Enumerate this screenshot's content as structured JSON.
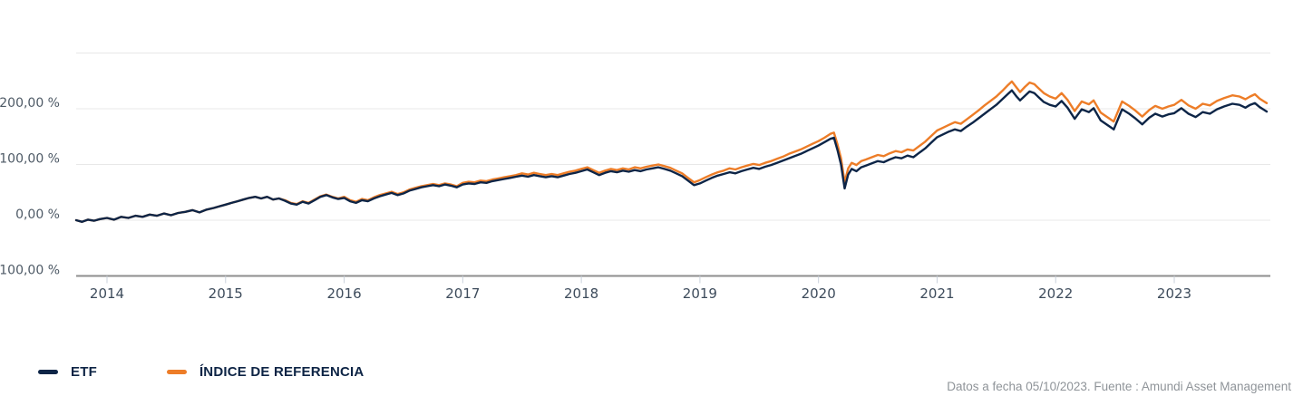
{
  "chart_data": {
    "type": "line",
    "title": "",
    "xlabel": "",
    "ylabel": "",
    "ylim": [
      -100,
      300
    ],
    "grid": true,
    "legend_position": "bottom-left",
    "yticks": [
      {
        "value": 300,
        "label": ""
      },
      {
        "value": 200,
        "label": "200,00 %"
      },
      {
        "value": 100,
        "label": "100,00 %"
      },
      {
        "value": 0,
        "label": "0,00 %"
      },
      {
        "value": -100,
        "label": "-100,00 %",
        "axis": true
      }
    ],
    "xticks": [
      {
        "year": 2014,
        "label": "2014"
      },
      {
        "year": 2015,
        "label": "2015"
      },
      {
        "year": 2016,
        "label": "2016"
      },
      {
        "year": 2017,
        "label": "2017"
      },
      {
        "year": 2018,
        "label": "2018"
      },
      {
        "year": 2019,
        "label": "2019"
      },
      {
        "year": 2020,
        "label": "2020"
      },
      {
        "year": 2021,
        "label": "2021"
      },
      {
        "year": 2022,
        "label": "2022"
      },
      {
        "year": 2023,
        "label": "2023"
      }
    ],
    "legend": [
      {
        "label": "ETF",
        "color": "#0d2547"
      },
      {
        "label": "ÍNDICE DE REFERENCIA",
        "color": "#ed7d28"
      }
    ],
    "x": [
      2013.74,
      2013.79,
      2013.84,
      2013.89,
      2013.94,
      2014.0,
      2014.06,
      2014.12,
      2014.18,
      2014.24,
      2014.3,
      2014.36,
      2014.42,
      2014.48,
      2014.54,
      2014.6,
      2014.66,
      2014.72,
      2014.78,
      2014.84,
      2014.9,
      2014.95,
      2015.0,
      2015.05,
      2015.1,
      2015.15,
      2015.2,
      2015.25,
      2015.3,
      2015.35,
      2015.4,
      2015.45,
      2015.5,
      2015.55,
      2015.6,
      2015.65,
      2015.7,
      2015.75,
      2015.8,
      2015.85,
      2015.9,
      2015.95,
      2016.0,
      2016.05,
      2016.1,
      2016.15,
      2016.2,
      2016.25,
      2016.3,
      2016.35,
      2016.4,
      2016.45,
      2016.5,
      2016.55,
      2016.6,
      2016.65,
      2016.7,
      2016.75,
      2016.8,
      2016.85,
      2016.9,
      2016.95,
      2017.0,
      2017.05,
      2017.1,
      2017.15,
      2017.2,
      2017.25,
      2017.3,
      2017.35,
      2017.4,
      2017.45,
      2017.5,
      2017.55,
      2017.6,
      2017.65,
      2017.7,
      2017.75,
      2017.8,
      2017.85,
      2017.9,
      2017.95,
      2018.0,
      2018.05,
      2018.1,
      2018.15,
      2018.2,
      2018.25,
      2018.3,
      2018.35,
      2018.4,
      2018.45,
      2018.5,
      2018.55,
      2018.6,
      2018.65,
      2018.7,
      2018.75,
      2018.8,
      2018.85,
      2018.9,
      2018.95,
      2019.0,
      2019.05,
      2019.1,
      2019.15,
      2019.2,
      2019.25,
      2019.3,
      2019.35,
      2019.4,
      2019.45,
      2019.5,
      2019.55,
      2019.6,
      2019.65,
      2019.7,
      2019.75,
      2019.8,
      2019.85,
      2019.9,
      2019.95,
      2020.0,
      2020.05,
      2020.1,
      2020.13,
      2020.16,
      2020.19,
      2020.22,
      2020.25,
      2020.28,
      2020.32,
      2020.36,
      2020.4,
      2020.45,
      2020.5,
      2020.55,
      2020.6,
      2020.65,
      2020.7,
      2020.75,
      2020.8,
      2020.85,
      2020.9,
      2020.95,
      2021.0,
      2021.05,
      2021.1,
      2021.15,
      2021.2,
      2021.25,
      2021.3,
      2021.35,
      2021.4,
      2021.45,
      2021.5,
      2021.55,
      2021.6,
      2021.63,
      2021.67,
      2021.7,
      2021.74,
      2021.78,
      2021.82,
      2021.86,
      2021.9,
      2021.95,
      2022.0,
      2022.05,
      2022.1,
      2022.16,
      2022.22,
      2022.28,
      2022.32,
      2022.38,
      2022.49,
      2022.56,
      2022.62,
      2022.67,
      2022.73,
      2022.79,
      2022.84,
      2022.9,
      2022.95,
      2023.0,
      2023.06,
      2023.12,
      2023.18,
      2023.24,
      2023.3,
      2023.36,
      2023.42,
      2023.49,
      2023.55,
      2023.6,
      2023.64,
      2023.68,
      2023.72,
      2023.75,
      2023.78
    ],
    "series": [
      {
        "name": "ÍNDICE DE REFERENCIA",
        "color": "#ed7d28",
        "values": [
          0,
          -3,
          1,
          -1,
          2,
          4,
          1,
          6,
          4,
          8,
          6,
          10,
          8,
          12,
          9,
          13,
          15,
          18,
          14,
          19,
          22,
          25,
          28,
          31,
          34,
          37,
          40,
          42,
          39,
          42,
          37,
          39,
          36,
          31,
          29,
          34,
          31,
          37,
          43,
          46,
          42,
          39,
          42,
          36,
          33,
          38,
          36,
          41,
          45,
          48,
          51,
          47,
          50,
          55,
          58,
          61,
          63,
          65,
          63,
          66,
          64,
          61,
          67,
          69,
          68,
          71,
          70,
          73,
          75,
          77,
          79,
          81,
          84,
          82,
          85,
          83,
          81,
          83,
          81,
          84,
          87,
          89,
          92,
          95,
          90,
          85,
          89,
          92,
          90,
          93,
          91,
          95,
          93,
          96,
          98,
          100,
          97,
          94,
          89,
          84,
          76,
          68,
          72,
          77,
          82,
          86,
          89,
          93,
          91,
          95,
          98,
          101,
          99,
          103,
          106,
          110,
          114,
          119,
          123,
          127,
          132,
          137,
          142,
          148,
          155,
          157,
          136,
          111,
          68,
          93,
          103,
          99,
          106,
          109,
          113,
          117,
          115,
          120,
          124,
          122,
          127,
          125,
          133,
          141,
          151,
          161,
          166,
          171,
          176,
          173,
          181,
          189,
          197,
          206,
          214,
          222,
          232,
          243,
          249,
          238,
          230,
          239,
          247,
          244,
          236,
          228,
          222,
          218,
          228,
          216,
          196,
          213,
          208,
          215,
          193,
          177,
          213,
          205,
          197,
          186,
          198,
          205,
          200,
          204,
          207,
          216,
          206,
          200,
          209,
          206,
          214,
          219,
          224,
          222,
          217,
          222,
          226,
          218,
          214,
          210
        ]
      },
      {
        "name": "ETF",
        "color": "#0d2547",
        "values": [
          0,
          -3,
          1,
          -1,
          2,
          4,
          1,
          6,
          4,
          8,
          6,
          10,
          8,
          12,
          9,
          13,
          15,
          18,
          14,
          19,
          22,
          25,
          28,
          31,
          34,
          37,
          40,
          42,
          39,
          42,
          37,
          39,
          35,
          30,
          28,
          33,
          30,
          36,
          42,
          45,
          41,
          38,
          40,
          34,
          31,
          36,
          34,
          39,
          43,
          46,
          49,
          45,
          48,
          53,
          56,
          59,
          61,
          63,
          61,
          64,
          62,
          59,
          64,
          66,
          65,
          68,
          67,
          70,
          72,
          74,
          76,
          78,
          80,
          78,
          81,
          79,
          77,
          79,
          77,
          80,
          83,
          85,
          88,
          91,
          86,
          81,
          85,
          88,
          86,
          89,
          87,
          90,
          88,
          91,
          93,
          95,
          92,
          89,
          84,
          79,
          71,
          63,
          66,
          71,
          76,
          80,
          83,
          86,
          84,
          88,
          91,
          94,
          92,
          96,
          99,
          103,
          107,
          111,
          115,
          119,
          124,
          129,
          134,
          140,
          146,
          148,
          126,
          100,
          57,
          82,
          92,
          88,
          95,
          98,
          102,
          106,
          104,
          109,
          113,
          111,
          116,
          113,
          121,
          129,
          139,
          149,
          154,
          159,
          163,
          160,
          168,
          175,
          183,
          191,
          199,
          207,
          217,
          227,
          233,
          222,
          215,
          223,
          231,
          228,
          220,
          212,
          207,
          204,
          214,
          202,
          182,
          199,
          194,
          201,
          179,
          163,
          199,
          191,
          183,
          172,
          184,
          191,
          186,
          190,
          192,
          201,
          191,
          185,
          194,
          191,
          199,
          204,
          209,
          207,
          202,
          207,
          210,
          203,
          199,
          195
        ]
      }
    ]
  },
  "colors": {
    "etf_line": "#0d2547",
    "index_line": "#ed7d28",
    "gridline": "#e8e8e8",
    "axis_line": "#8e8e8e",
    "tick_mark": "#c9d1db",
    "y_label": "#4e5a66",
    "x_label": "#3e4c5c",
    "legend_text": "#0d2445",
    "footer_text": "#8f9499"
  },
  "footer": {
    "text": "Datos a fecha 05/10/2023. Fuente : Amundi Asset Management"
  }
}
